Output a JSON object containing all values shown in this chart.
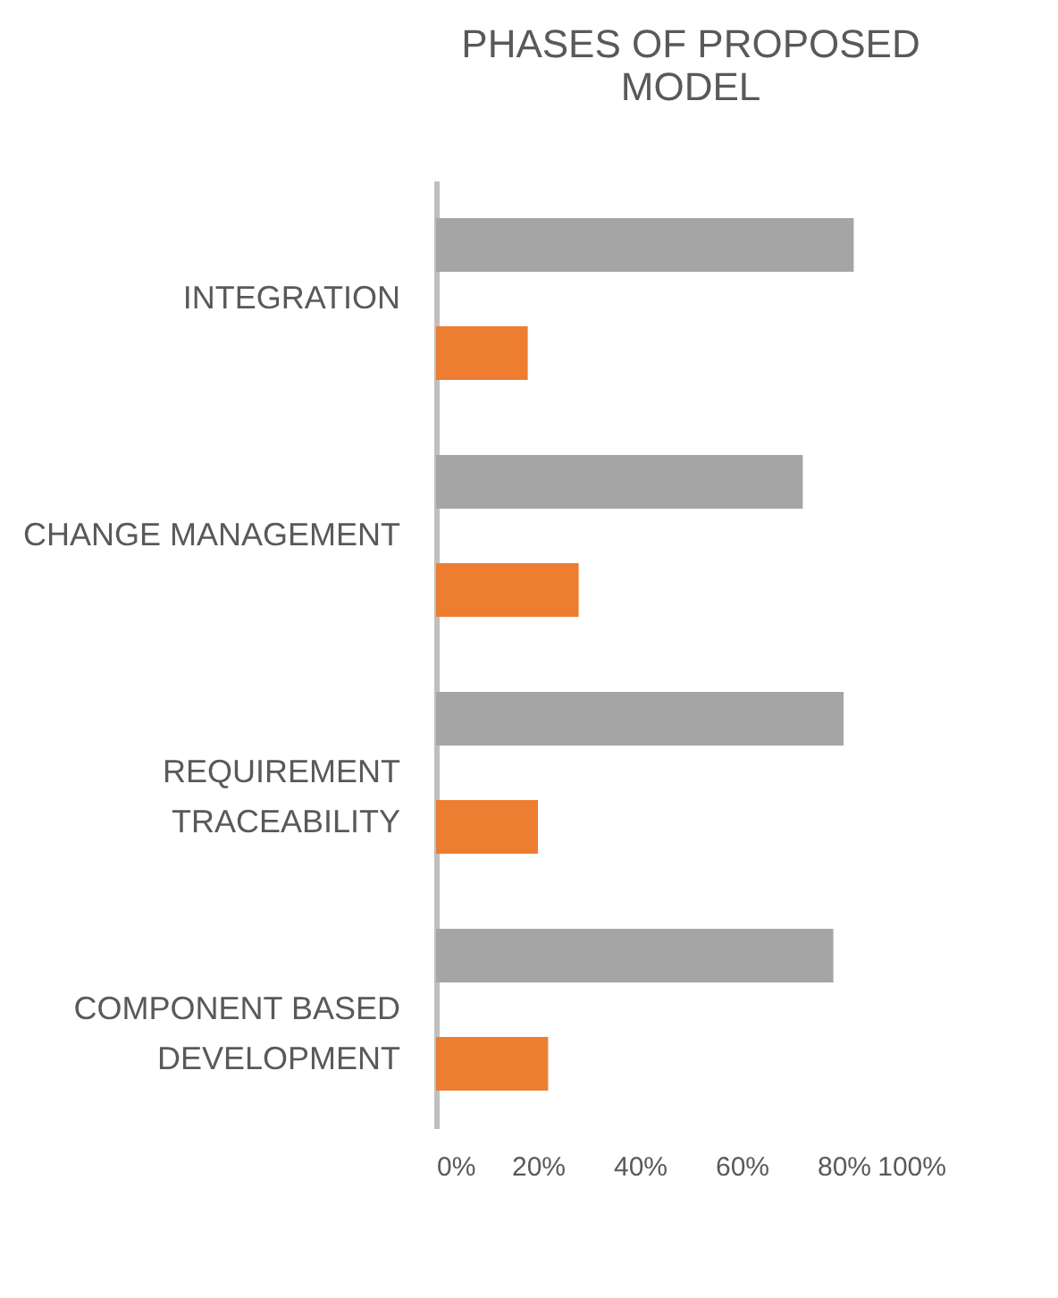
{
  "chart_data": {
    "type": "bar",
    "orientation": "horizontal",
    "title": "PHASES OF PROPOSED MODEL",
    "categories": [
      "INTEGRATION",
      "CHANGE MANAGEMENT",
      "REQUIREMENT TRACEABILITY",
      "COMPONENT BASED DEVELOPMENT"
    ],
    "series": [
      {
        "color": "#a5a5a5",
        "values": [
          82,
          72,
          80,
          78
        ]
      },
      {
        "color": "#ed7d31",
        "values": [
          18,
          28,
          20,
          22
        ]
      }
    ],
    "xlim": [
      0,
      100
    ],
    "xticks": [
      {
        "value": 0,
        "label": "0%"
      },
      {
        "value": 20,
        "label": "20%"
      },
      {
        "value": 40,
        "label": "40%"
      },
      {
        "value": 60,
        "label": "60%"
      },
      {
        "value": 80,
        "label": "80%"
      },
      {
        "value": 100,
        "label": "100%"
      }
    ],
    "grid": false,
    "legend": false
  }
}
